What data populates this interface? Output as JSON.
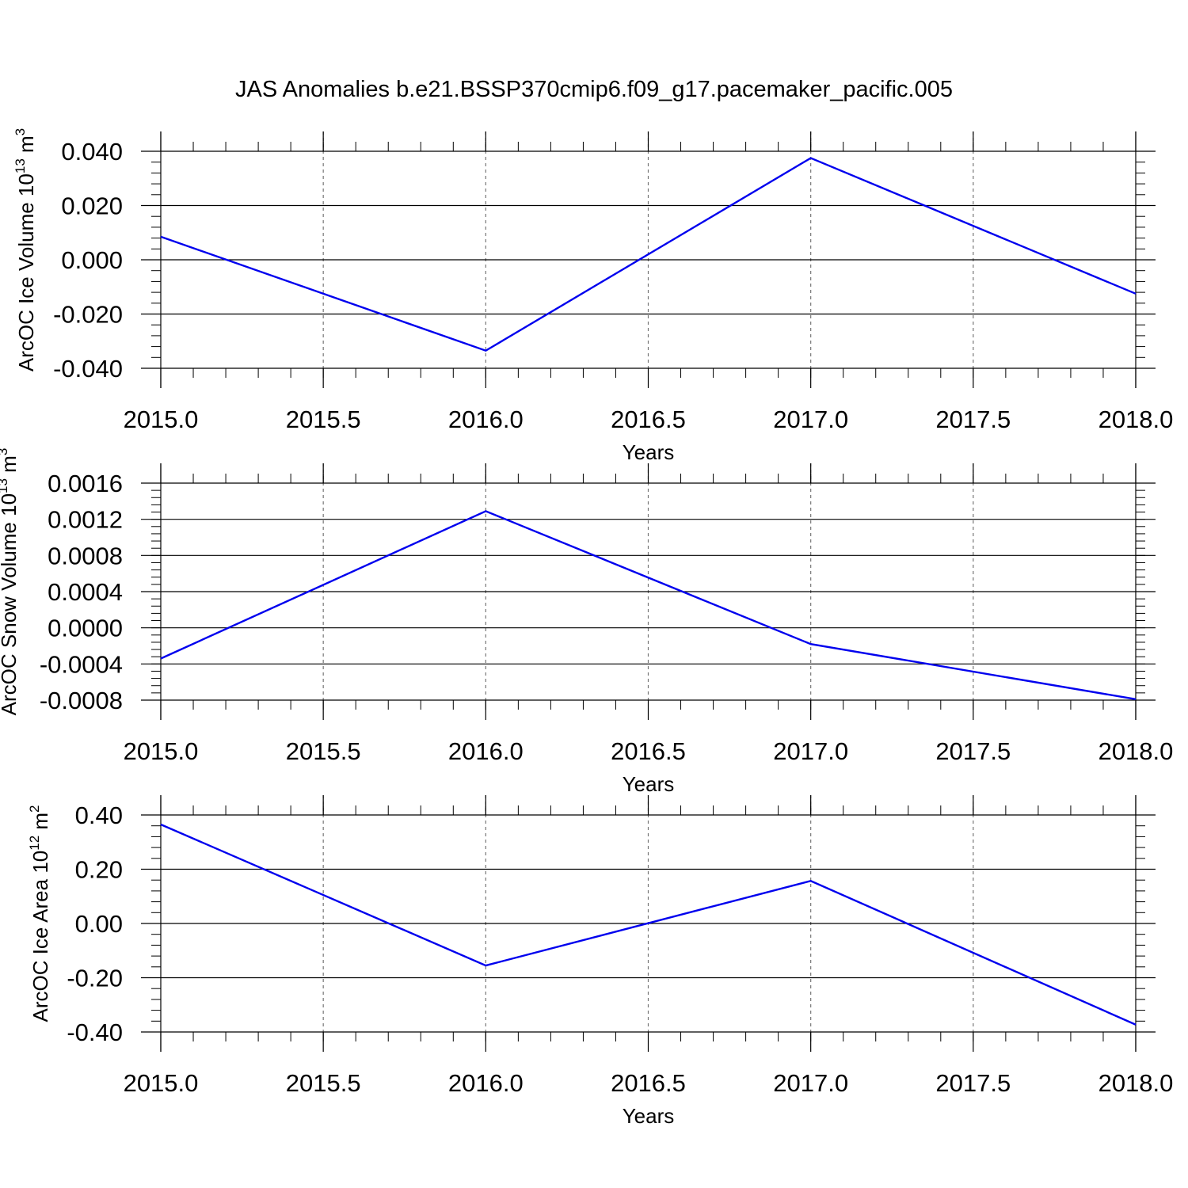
{
  "title": "JAS Anomalies b.e21.BSSP370cmip6.f09_g17.pacemaker_pacific.005",
  "chart_data": [
    {
      "type": "line",
      "ylabel_main": "ArcOC Ice Volume 10",
      "ylabel_sup": "13",
      "ylabel_unit": " m",
      "ylabel_unit_sup": "3",
      "xlabel": "Years",
      "xlim": [
        2015.0,
        2018.0
      ],
      "ylim": [
        -0.04,
        0.04
      ],
      "xticks": [
        "2015.0",
        "2015.5",
        "2016.0",
        "2016.5",
        "2017.0",
        "2017.5",
        "2018.0"
      ],
      "yticks": [
        "-0.040",
        "-0.020",
        "0.000",
        "0.020",
        "0.040"
      ],
      "ytick_values": [
        -0.04,
        -0.02,
        0.0,
        0.02,
        0.04
      ],
      "grid": "vertical dashed at major x ticks",
      "line_color": "#0000ee",
      "x": [
        2015,
        2016,
        2017,
        2018
      ],
      "y": [
        0.0085,
        -0.0335,
        0.0375,
        -0.0125
      ]
    },
    {
      "type": "line",
      "ylabel_main": "ArcOC Snow Volume 10",
      "ylabel_sup": "13",
      "ylabel_unit": " m",
      "ylabel_unit_sup": "3",
      "xlabel": "Years",
      "xlim": [
        2015.0,
        2018.0
      ],
      "ylim": [
        -0.0008,
        0.0016
      ],
      "xticks": [
        "2015.0",
        "2015.5",
        "2016.0",
        "2016.5",
        "2017.0",
        "2017.5",
        "2018.0"
      ],
      "yticks": [
        "-0.0008",
        "-0.0004",
        "0.0000",
        "0.0004",
        "0.0008",
        "0.0012",
        "0.0016"
      ],
      "ytick_values": [
        -0.0008,
        -0.0004,
        0.0,
        0.0004,
        0.0008,
        0.0012,
        0.0016
      ],
      "grid": "vertical dashed at major x ticks",
      "line_color": "#0000ee",
      "x": [
        2015,
        2016,
        2017,
        2018
      ],
      "y": [
        -0.00034,
        0.00129,
        -0.00018,
        -0.00079
      ]
    },
    {
      "type": "line",
      "ylabel_main": "ArcOC Ice Area 10",
      "ylabel_sup": "12",
      "ylabel_unit": " m",
      "ylabel_unit_sup": "2",
      "xlabel": "Years",
      "xlim": [
        2015.0,
        2018.0
      ],
      "ylim": [
        -0.4,
        0.4
      ],
      "xticks": [
        "2015.0",
        "2015.5",
        "2016.0",
        "2016.5",
        "2017.0",
        "2017.5",
        "2018.0"
      ],
      "yticks": [
        "-0.40",
        "-0.20",
        "0.00",
        "0.20",
        "0.40"
      ],
      "ytick_values": [
        -0.4,
        -0.2,
        0.0,
        0.2,
        0.4
      ],
      "grid": "vertical dashed at major x ticks",
      "line_color": "#0000ee",
      "x": [
        2015,
        2016,
        2017,
        2018
      ],
      "y": [
        0.365,
        -0.155,
        0.157,
        -0.373
      ]
    }
  ]
}
